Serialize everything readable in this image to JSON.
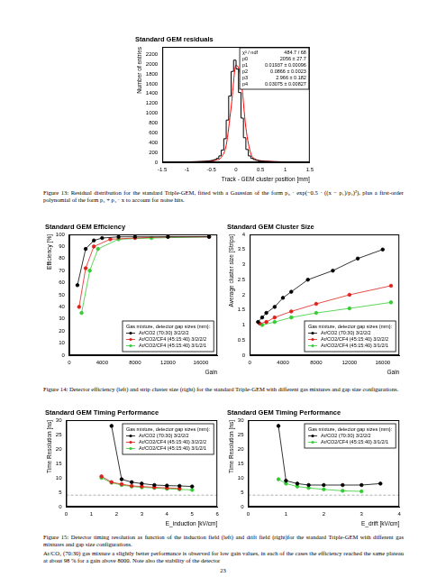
{
  "chart_data": [
    {
      "type": "histogram",
      "title": "Standard GEM residuals",
      "x_label": "Track - GEM cluster position [mm]",
      "y_label": "Number of entries",
      "bins": [
        -1.5,
        -1.45,
        -1.4,
        -1.35,
        -1.3,
        -1.25,
        -1.2,
        -1.15,
        -1.1,
        -1.05,
        -1.0,
        -0.95,
        -0.9,
        -0.85,
        -0.8,
        -0.75,
        -0.7,
        -0.65,
        -0.6,
        -0.55,
        -0.5,
        -0.45,
        -0.4,
        -0.35,
        -0.3,
        -0.25,
        -0.2,
        -0.15,
        -0.1,
        -0.05,
        0,
        0.05,
        0.1,
        0.15,
        0.2,
        0.25,
        0.3,
        0.35,
        0.4,
        0.45,
        0.5,
        0.55,
        0.6,
        0.65,
        0.7,
        0.75,
        0.8,
        0.85,
        0.9,
        0.95,
        1.0,
        1.05,
        1.1,
        1.15,
        1.2,
        1.25,
        1.3,
        1.35,
        1.4,
        1.45,
        1.5
      ],
      "counts": [
        2,
        3,
        3,
        4,
        4,
        5,
        5,
        6,
        6,
        7,
        8,
        9,
        10,
        11,
        12,
        14,
        16,
        18,
        20,
        24,
        30,
        40,
        55,
        80,
        130,
        250,
        480,
        860,
        1350,
        1850,
        2080,
        1900,
        1420,
        900,
        500,
        260,
        130,
        80,
        55,
        40,
        30,
        24,
        20,
        18,
        16,
        14,
        12,
        11,
        10,
        9,
        8,
        7,
        6,
        6,
        5,
        5,
        4,
        3,
        3,
        2
      ],
      "color": "#000000",
      "fit": {
        "x": [
          -1.5,
          -1.4,
          -1.3,
          -1.2,
          -1.1,
          -1.0,
          -0.9,
          -0.8,
          -0.7,
          -0.6,
          -0.5,
          -0.4,
          -0.3,
          -0.2,
          -0.1,
          0,
          0.1,
          0.2,
          0.3,
          0.4,
          0.5,
          0.6,
          0.7,
          0.8,
          0.9,
          1.0,
          1.1,
          1.2,
          1.3,
          1.4,
          1.5
        ],
        "values": [
          2,
          3,
          4,
          5,
          6,
          8,
          10,
          12,
          15,
          19,
          27,
          45,
          100,
          350,
          1120,
          1980,
          1700,
          700,
          180,
          60,
          32,
          22,
          17,
          13,
          11,
          9,
          7,
          5,
          4,
          3,
          2
        ],
        "color": "#ff0000"
      },
      "stats": [
        {
          "label": "χ² / ndf",
          "value": "484.7 / 68"
        },
        {
          "label": "p0",
          "value": "2056 ± 27.7"
        },
        {
          "label": "p1",
          "value": "0.01937 ± 0.00096"
        },
        {
          "label": "p2",
          "value": "0.0866 ± 0.0023"
        },
        {
          "label": "p3",
          "value": "2.966 ± 0.182"
        },
        {
          "label": "p4",
          "value": "0.03075 ± 0.00827"
        }
      ],
      "xlim": [
        -1.5,
        1.5
      ],
      "xticks": [
        -1.5,
        -1,
        -0.5,
        0,
        0.5,
        1,
        1.5
      ],
      "ylim": [
        0,
        2350
      ],
      "yticks": [
        0,
        200,
        400,
        600,
        800,
        1000,
        1200,
        1400,
        1600,
        1800,
        2000,
        2200
      ],
      "grid": false
    },
    {
      "type": "line",
      "title": "Standard GEM Efficiency",
      "x_label": "Gain",
      "y_label": "Efficiency [%]",
      "legend": "lower right",
      "legend_title": "Gas mixture, detector gap sizes (mm):",
      "series": [
        {
          "name": "Ar/CO2 (70:30) 3/2/2/2",
          "color": "#000000",
          "marker": "circle",
          "x": [
            1000,
            2000,
            3000,
            4000,
            6000,
            8000,
            12000,
            17000
          ],
          "values": [
            58,
            88,
            95,
            97,
            98,
            98,
            98,
            98
          ]
        },
        {
          "name": "Ar/CO2/CF4 (45:15:40) 3/2/2/2",
          "color": "#e0201a",
          "marker": "circle",
          "x": [
            1200,
            2000,
            3000,
            5000,
            8000,
            12000,
            17000
          ],
          "values": [
            40,
            72,
            90,
            96,
            97,
            98,
            98
          ]
        },
        {
          "name": "Ar/CO2/CF4 (45:15:40) 3/1/2/1",
          "color": "#33cc33",
          "marker": "circle",
          "x": [
            1500,
            2500,
            3500,
            6000,
            10000,
            17000
          ],
          "values": [
            35,
            70,
            88,
            96,
            97,
            98
          ]
        }
      ],
      "xlim": [
        0,
        18000
      ],
      "xticks": [
        0,
        4000,
        8000,
        12000,
        16000
      ],
      "ylim": [
        0,
        100
      ],
      "yticks": [
        0,
        10,
        20,
        30,
        40,
        50,
        60,
        70,
        80,
        90,
        100
      ],
      "grid": false
    },
    {
      "type": "line",
      "title": "Standard GEM Cluster Size",
      "x_label": "Gain",
      "y_label": "Average cluster size [Strips]",
      "legend": "lower right",
      "legend_title": "Gas mixture, detector gap sizes (mm):",
      "series": [
        {
          "name": "Ar/CO2 (70:30) 3/2/2/2",
          "color": "#000000",
          "marker": "circle",
          "x": [
            1000,
            1500,
            2000,
            3000,
            4000,
            5000,
            7000,
            10000,
            13000,
            16000
          ],
          "values": [
            1.1,
            1.25,
            1.4,
            1.6,
            1.9,
            2.1,
            2.5,
            2.8,
            3.2,
            3.5
          ]
        },
        {
          "name": "Ar/CO2/CF4 (45:15:40) 3/2/2/2",
          "color": "#e0201a",
          "marker": "circle",
          "x": [
            1200,
            2000,
            3000,
            5000,
            8000,
            12000,
            17000
          ],
          "values": [
            1.05,
            1.1,
            1.25,
            1.45,
            1.7,
            2.0,
            2.3
          ]
        },
        {
          "name": "Ar/CO2/CF4 (45:15:40) 3/1/2/1",
          "color": "#33cc33",
          "marker": "circle",
          "x": [
            1500,
            3000,
            5000,
            8000,
            12000,
            17000
          ],
          "values": [
            1.0,
            1.1,
            1.25,
            1.4,
            1.55,
            1.75
          ]
        }
      ],
      "xlim": [
        0,
        18000
      ],
      "xticks": [
        0,
        4000,
        8000,
        12000,
        16000
      ],
      "ylim": [
        0,
        4
      ],
      "yticks": [
        0,
        0.5,
        1,
        1.5,
        2,
        2.5,
        3,
        3.5,
        4
      ],
      "grid": false
    },
    {
      "type": "line",
      "title": "Standard GEM Timing Performance",
      "x_label": "E_induction [kV/cm]",
      "y_label": "Time Resolution [ns]",
      "legend": "upper right",
      "legend_title": "Gas mixture, detector gap sizes (mm):",
      "series": [
        {
          "name": "Ar/CO2 (70:30) 3/2/2/2",
          "color": "#000000",
          "marker": "circle",
          "x": [
            1.8,
            2.2,
            2.6,
            3.0,
            3.5,
            4.0,
            4.5,
            5.0
          ],
          "values": [
            28,
            9.5,
            8.5,
            8,
            7.5,
            7.3,
            7.2,
            7
          ]
        },
        {
          "name": "Ar/CO2/CF4 (45:15:40) 3/2/2/2",
          "color": "#e0201a",
          "marker": "circle",
          "x": [
            1.4,
            1.8,
            2.2,
            2.6,
            3.0,
            3.5,
            4.0,
            4.5
          ],
          "values": [
            10.5,
            8.5,
            7.8,
            7.2,
            7,
            6.7,
            6.5,
            6.3
          ]
        },
        {
          "name": "Ar/CO2/CF4 (45:15:40) 3/1/2/1",
          "color": "#33cc33",
          "marker": "circle",
          "x": [
            1.4,
            1.8,
            2.2,
            2.6,
            3.0,
            3.5,
            4.0,
            4.5,
            5.0
          ],
          "values": [
            10,
            8.3,
            7.5,
            7,
            6.7,
            6.5,
            6.2,
            6,
            5.8
          ]
        }
      ],
      "hline": {
        "value": 4,
        "line_style": "dashed",
        "color": "#999999"
      },
      "xlim": [
        0,
        6
      ],
      "xticks": [
        0,
        1,
        2,
        3,
        4,
        5,
        6
      ],
      "ylim": [
        0,
        30
      ],
      "yticks": [
        0,
        5,
        10,
        15,
        20,
        25,
        30
      ],
      "grid": false
    },
    {
      "type": "line",
      "title": "Standard GEM Timing Performance",
      "x_label": "E_drift [kV/cm]",
      "y_label": "Time Resolution [ns]",
      "legend": "upper right",
      "legend_title": "Gas mixture, detector gap sizes (mm):",
      "series": [
        {
          "name": "Ar/CO2 (70:30) 3/2/2/2",
          "color": "#000000",
          "marker": "circle",
          "x": [
            0.8,
            1.0,
            1.3,
            1.6,
            2.0,
            2.5,
            3.0,
            3.5
          ],
          "values": [
            28,
            9,
            8,
            7.5,
            7.5,
            7.5,
            7.5,
            8
          ]
        },
        {
          "name": "Ar/CO2/CF4 (45:15:40) 3/1/2/1",
          "color": "#33cc33",
          "marker": "circle",
          "x": [
            0.8,
            1.0,
            1.3,
            1.6,
            2.0,
            2.5,
            3.0
          ],
          "values": [
            9.5,
            8,
            7,
            6.5,
            6,
            5.5,
            5.3
          ]
        }
      ],
      "hline": {
        "value": 4,
        "line_style": "dashed",
        "color": "#999999"
      },
      "xlim": [
        0,
        4
      ],
      "xticks": [
        0,
        1,
        2,
        3,
        4
      ],
      "ylim": [
        0,
        30
      ],
      "yticks": [
        0,
        5,
        10,
        15,
        20,
        25,
        30
      ],
      "grid": false
    }
  ],
  "captions": [
    "Figure 13: Residual distribution for the standard Triple-GEM, fitted with a Gaussian of the form p₀ · exp(−0.5 · ((x − p₁)/p₂)²), plus a first-order polynomial of the form p₃ + p₄ · x to account for noise hits.",
    "Figure 14: Detector efficiency (left) and strip cluster size (right) for the standard Triple-GEM with different gas mixtures and gap size configurations.",
    "Figure 15: Detector timing resolution as function of the induction field (left) and drift field (right)for the standard Triple-GEM with different gas mixtures and gap size configurations."
  ],
  "body_text": "Ar/CO₂ (70:30) gas mixture a slightly better performance is observed for low gain values, in each of the cases the efficiency reached the same plateau at about 98 % for a gain above 8000. Note also the stability of the detector",
  "page_number": "23"
}
